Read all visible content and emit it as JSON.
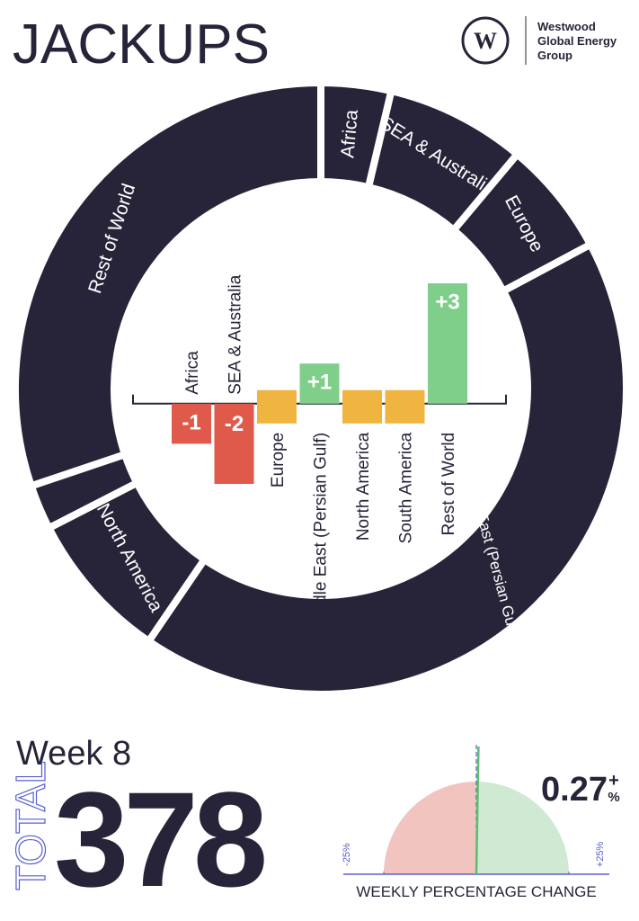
{
  "header": {
    "title": "JACKUPS",
    "logo_mark": "W",
    "logo_text": [
      "Westwood",
      "Global Energy",
      "Group"
    ]
  },
  "chart_data": [
    {
      "type": "donut",
      "categories": [
        "Africa",
        "SEA & Australia",
        "Europe",
        "Middle East (Persian Gulf & Red Sea)",
        "North America",
        null,
        "Rest of World"
      ],
      "values": [
        14,
        28,
        23,
        160,
        30,
        9,
        114
      ],
      "color": "#27243a"
    },
    {
      "type": "bar",
      "categories": [
        "Africa",
        "SEA & Australia",
        "Europe",
        "Middle East (Persian Gulf)",
        "North America",
        "South America",
        "Rest of World"
      ],
      "values": [
        -1,
        -2,
        0,
        1,
        0,
        0,
        3
      ],
      "value_labels": [
        "-1",
        "-2",
        null,
        "+1",
        null,
        null,
        "+3"
      ],
      "colors": [
        "#e05a4b",
        "#e05a4b",
        "#f0b440",
        "#7fcf8a",
        "#f0b440",
        "#f0b440",
        "#7fcf8a"
      ],
      "ylim": [
        -2,
        3
      ]
    },
    {
      "type": "gauge",
      "title": "WEEKLY PERCENTAGE CHANGE",
      "value": 0.27,
      "value_label": "0.27",
      "sign": "+",
      "unit": "%",
      "xlim": [
        -25,
        25
      ],
      "xticks": [
        {
          "value": -25,
          "label": "-25%"
        },
        {
          "value": 25,
          "label": "+25%"
        }
      ],
      "colors": {
        "negative": "#f2c4bf",
        "positive": "#cfe9d2",
        "needle": "#5cbf6a"
      }
    }
  ],
  "summary": {
    "week": "Week 8",
    "total_label": "TOTAL",
    "total": "378"
  }
}
